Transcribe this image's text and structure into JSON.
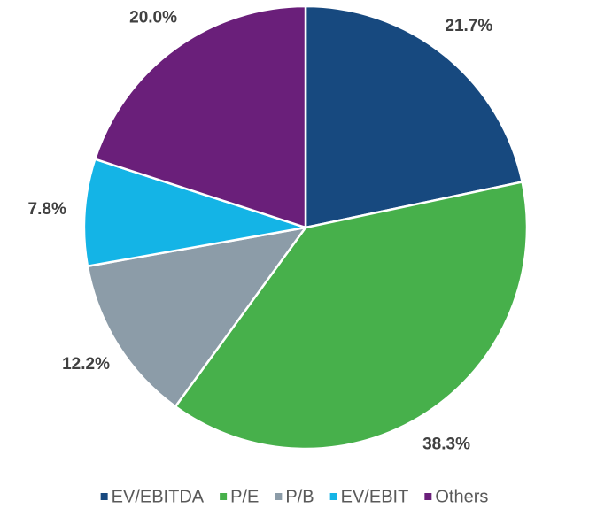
{
  "chart_data": {
    "type": "pie",
    "categories": [
      "EV/EBITDA",
      "P/E",
      "P/B",
      "EV/EBIT",
      "Others"
    ],
    "values": [
      21.7,
      38.3,
      12.2,
      7.8,
      20.0
    ],
    "value_labels": [
      "21.7%",
      "38.3%",
      "12.2%",
      "7.8%",
      "20.0%"
    ],
    "colors": [
      "#17497f",
      "#47b04b",
      "#8c9ca8",
      "#14b4e6",
      "#6a1f7a"
    ],
    "legend": "bottom"
  }
}
